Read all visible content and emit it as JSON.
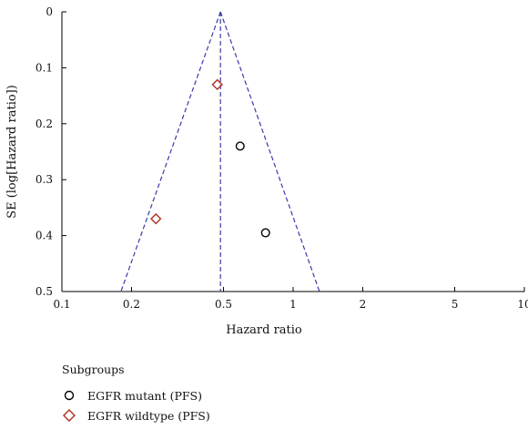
{
  "chart_data": {
    "type": "scatter",
    "xlabel": "Hazard ratio",
    "ylabel": "SE (log[Hazard ratio])",
    "x_scale": "log",
    "xlim": [
      0.1,
      10
    ],
    "ylim": [
      0.5,
      0
    ],
    "x_ticks": [
      "0.1",
      "0.2",
      "0.5",
      "1",
      "2",
      "5",
      "10"
    ],
    "x_tick_values": [
      0.1,
      0.2,
      0.5,
      1,
      2,
      5,
      10
    ],
    "y_ticks": [
      "0",
      "0.1",
      "0.2",
      "0.3",
      "0.4",
      "0.5"
    ],
    "y_tick_values": [
      0,
      0.1,
      0.2,
      0.3,
      0.4,
      0.5
    ],
    "pooled_hr": 0.485,
    "pooled_line_color": "#3a3aa8",
    "funnel": {
      "apex_hr": 0.485,
      "left_base_hr": 0.18,
      "right_base_hr": 1.3,
      "base_se": 0.5
    },
    "legend_title": "Subgroups",
    "series": [
      {
        "name": "EGFR mutant (PFS)",
        "marker": "circle",
        "color": "#000000",
        "points": [
          {
            "x": 0.59,
            "y": 0.24
          },
          {
            "x": 0.76,
            "y": 0.395
          }
        ]
      },
      {
        "name": "EGFR wildtype (PFS)",
        "marker": "diamond",
        "color": "#b03020",
        "points": [
          {
            "x": 0.47,
            "y": 0.13
          },
          {
            "x": 0.255,
            "y": 0.37
          }
        ]
      }
    ]
  }
}
